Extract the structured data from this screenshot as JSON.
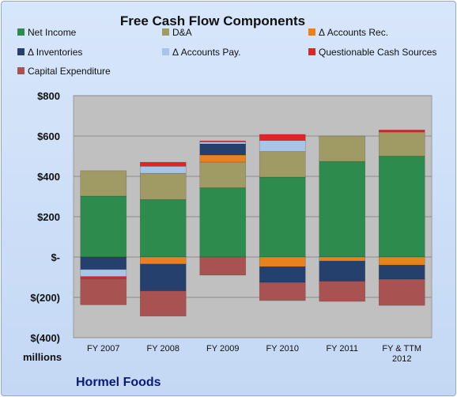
{
  "chart_data": {
    "type": "bar",
    "stacked": true,
    "title": "Free Cash Flow Components",
    "units_label": "millions",
    "company": "Hormel Foods",
    "categories": [
      [
        "FY 2007"
      ],
      [
        "FY 2008"
      ],
      [
        "FY 2009"
      ],
      [
        "FY 2010"
      ],
      [
        "FY 2011"
      ],
      [
        "FY & TTM",
        "2012"
      ]
    ],
    "ylim": [
      -400,
      800
    ],
    "yticks": [
      -400,
      -200,
      0,
      200,
      400,
      600,
      800
    ],
    "ytick_labels": [
      "$(400)",
      "$(200)",
      "$-",
      "$200",
      "$400",
      "$600",
      "$800"
    ],
    "grid": true,
    "legend_position": "top",
    "series": [
      {
        "name": "Net Income",
        "color": "#2e8b4e",
        "values": [
          302,
          285,
          343,
          396,
          474,
          500
        ]
      },
      {
        "name": "D&A",
        "color": "#a09a64",
        "values": [
          126,
          130,
          128,
          127,
          126,
          120
        ]
      },
      {
        "name": "Δ Accounts Rec.",
        "color": "#e8821e",
        "values": [
          0,
          -35,
          35,
          -48,
          -20,
          -40
        ]
      },
      {
        "name": "Δ Inventories",
        "color": "#26406e",
        "values": [
          -62,
          -133,
          55,
          -78,
          -100,
          -70
        ]
      },
      {
        "name": "Δ Accounts Pay.",
        "color": "#a8c4e6",
        "values": [
          -35,
          35,
          10,
          55,
          0,
          0
        ]
      },
      {
        "name": "Questionable Cash Sources",
        "color": "#e02428",
        "values": [
          -10,
          20,
          5,
          30,
          0,
          10
        ]
      },
      {
        "name": "Capital Expenditure",
        "color": "#a85252",
        "values": [
          -130,
          -125,
          -90,
          -90,
          -100,
          -130
        ]
      }
    ]
  }
}
